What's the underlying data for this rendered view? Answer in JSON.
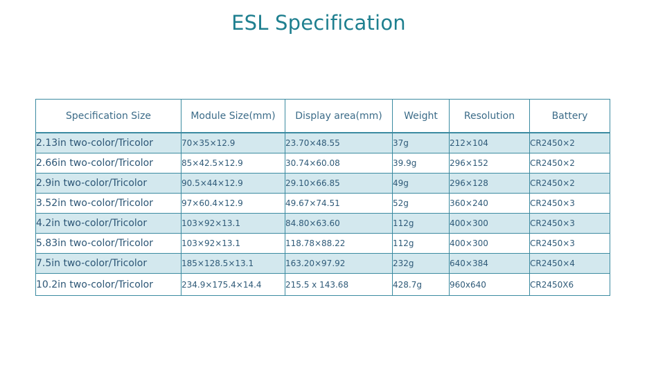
{
  "title": "ESL Specification",
  "table": {
    "headers": [
      "Specification Size",
      "Module Size(mm)",
      "Display area(mm)",
      "Weight",
      "Resolution",
      "Battery"
    ],
    "rows": [
      [
        "2.13in two-color/Tricolor",
        "70×35×12.9",
        "23.70×48.55",
        "37g",
        "212×104",
        "CR2450×2"
      ],
      [
        "2.66in two-color/Tricolor",
        "85×42.5×12.9",
        "30.74×60.08",
        "39.9g",
        "296×152",
        "CR2450×2"
      ],
      [
        "2.9in two-color/Tricolor",
        "90.5×44×12.9",
        "29.10×66.85",
        "49g",
        "296×128",
        "CR2450×2"
      ],
      [
        "3.52in two-color/Tricolor",
        "97×60.4×12.9",
        "49.67×74.51",
        "52g",
        "360×240",
        "CR2450×3"
      ],
      [
        "4.2in two-color/Tricolor",
        "103×92×13.1",
        "84.80×63.60",
        "112g",
        "400×300",
        "CR2450×3"
      ],
      [
        "5.83in two-color/Tricolor",
        "103×92×13.1",
        "118.78×88.22",
        "112g",
        "400×300",
        "CR2450×3"
      ],
      [
        "7.5in two-color/Tricolor",
        "185×128.5×13.1",
        "163.20×97.92",
        "232g",
        "640×384",
        "CR2450×4"
      ],
      [
        "10.2in two-color/Tricolor",
        "234.9×175.4×14.4",
        "215.5 x 143.68",
        "428.7g",
        "960x640",
        "CR2450X6"
      ]
    ]
  }
}
